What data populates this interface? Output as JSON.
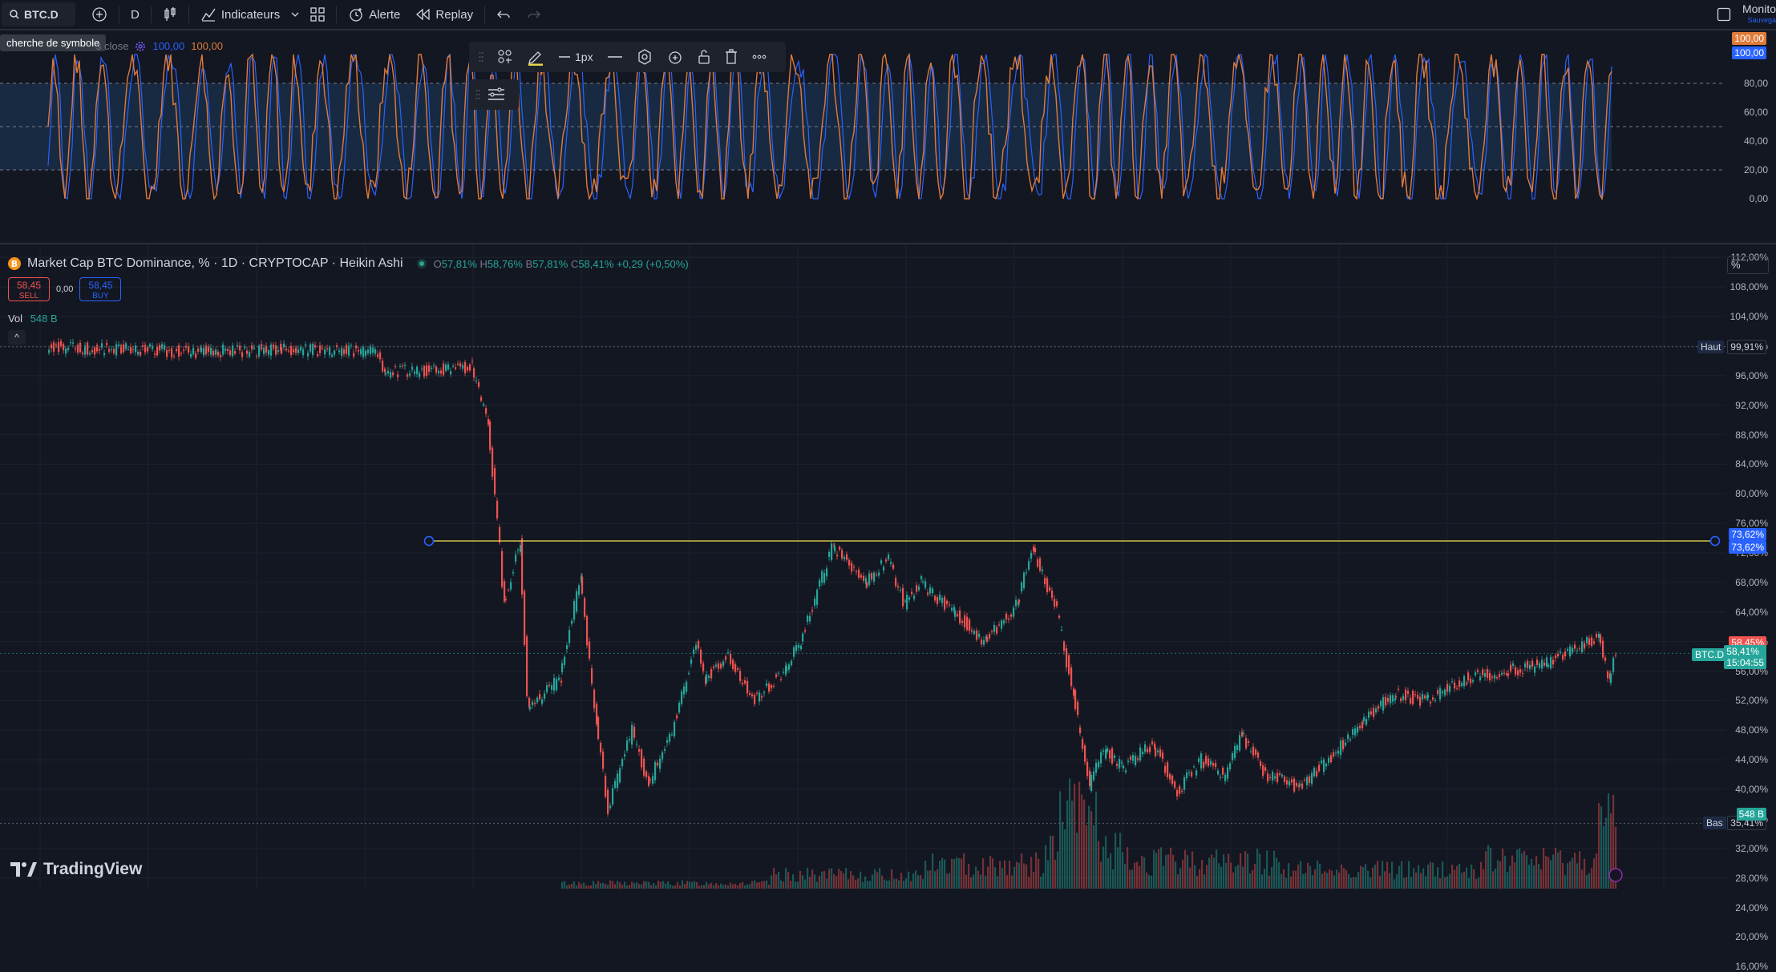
{
  "toolbar": {
    "symbol": "BTC.D",
    "interval": "D",
    "indicators_label": "Indicateurs",
    "alert_label": "Alerte",
    "replay_label": "Replay",
    "monitor_label": "Monito",
    "monitor_sub": "Sauvega"
  },
  "tooltip": "cherche de symbole",
  "oscillator": {
    "legend_text": "s close",
    "value1": "100,00",
    "value2": "100,00",
    "axis_ticks": [
      "80,00",
      "60,00",
      "40,00",
      "20,00",
      "0,00"
    ],
    "tag_orange": "100,00",
    "tag_blue": "100,00",
    "colors": {
      "line1": "#e07b39",
      "line2": "#2962ff",
      "band": "#1b3a5c"
    }
  },
  "drawing_toolbar": {
    "width_label": "1px"
  },
  "legend": {
    "title": "Market Cap BTC Dominance, % · 1D · CRYPTOCAP · Heikin Ashi",
    "o_label": "O",
    "o_val": "57,81%",
    "h_label": "H",
    "h_val": "58,76%",
    "b_label": "B",
    "b_val": "57,81%",
    "c_label": "C",
    "c_val": "58,41%",
    "change": "+0,29 (+0,50%)"
  },
  "trade": {
    "sell_price": "58,45",
    "sell_label": "SELL",
    "spread": "0,00",
    "buy_price": "58,45",
    "buy_label": "BUY"
  },
  "volume": {
    "label": "Vol",
    "value": "548 B"
  },
  "price_axis": {
    "scale_mode": "%",
    "ticks": [
      "112,00%",
      "108,00%",
      "104,00%",
      "100,00%",
      "96,00%",
      "92,00%",
      "88,00%",
      "84,00%",
      "80,00%",
      "76,00%",
      "72,00%",
      "68,00%",
      "64,00%",
      "60,00%",
      "56,00%",
      "52,00%",
      "48,00%",
      "44,00%",
      "40,00%",
      "36,00%",
      "32,00%",
      "28,00%",
      "24,00%",
      "20,00%",
      "16,00%"
    ],
    "high_label": "Haut",
    "high_val": "99,91%",
    "low_label": "Bas",
    "low_val": "35,41%",
    "hline_val1": "73,62%",
    "hline_val2": "73,62%",
    "ask_val": "58,45%",
    "symbol_tag": "BTC.D",
    "last_val": "58,41%",
    "countdown": "15:04:55",
    "vol_tag": "548 B"
  },
  "brand": "TradingView",
  "colors": {
    "up": "#26a69a",
    "down": "#ef5350",
    "bg": "#131722",
    "hline": "#e6d34a",
    "accent": "#2962ff"
  }
}
